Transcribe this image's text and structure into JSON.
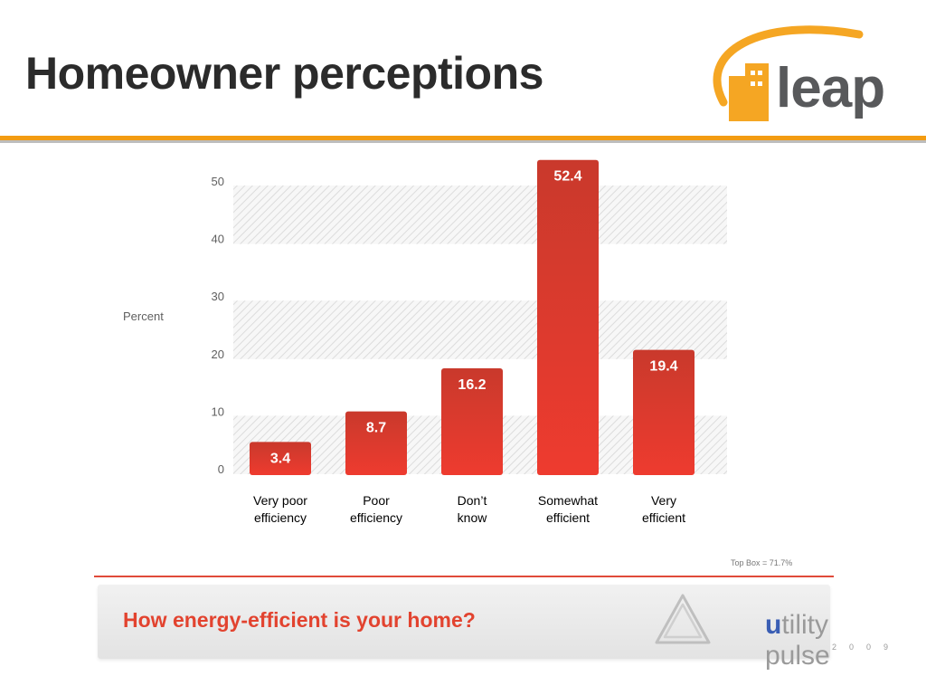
{
  "slide_title": "Homeowner perceptions",
  "logo_text": "leap",
  "chart_data": {
    "type": "bar",
    "categories": [
      "Very poor efficiency",
      "Poor efficiency",
      "Don’t know",
      "Somewhat efficient",
      "Very efficient"
    ],
    "category_lines": [
      [
        "Very poor",
        "efficiency"
      ],
      [
        "Poor",
        "efficiency"
      ],
      [
        "Don’t",
        "know"
      ],
      [
        "Somewhat",
        "efficient"
      ],
      [
        "Very",
        "efficient"
      ]
    ],
    "values": [
      3.4,
      8.7,
      16.2,
      52.4,
      19.4
    ],
    "value_labels": [
      "3.4",
      "8.7",
      "16.2",
      "52.4",
      "19.4"
    ],
    "ylabel": "Percent",
    "yticks": [
      "0",
      "10",
      "20",
      "30",
      "40",
      "50"
    ],
    "ylim": [
      0,
      50
    ],
    "grid": "hatched bands",
    "bar_color": "#e63a2e",
    "annotation": "Top Box = 71.7%"
  },
  "question": "How energy-efficient is your home?",
  "brand": {
    "u": "u",
    "rest": "tility pulse",
    "year": "2009"
  },
  "colors": {
    "accent_orange": "#f39c12",
    "bar_red": "#e63a2e",
    "question_red": "#e2432f"
  }
}
